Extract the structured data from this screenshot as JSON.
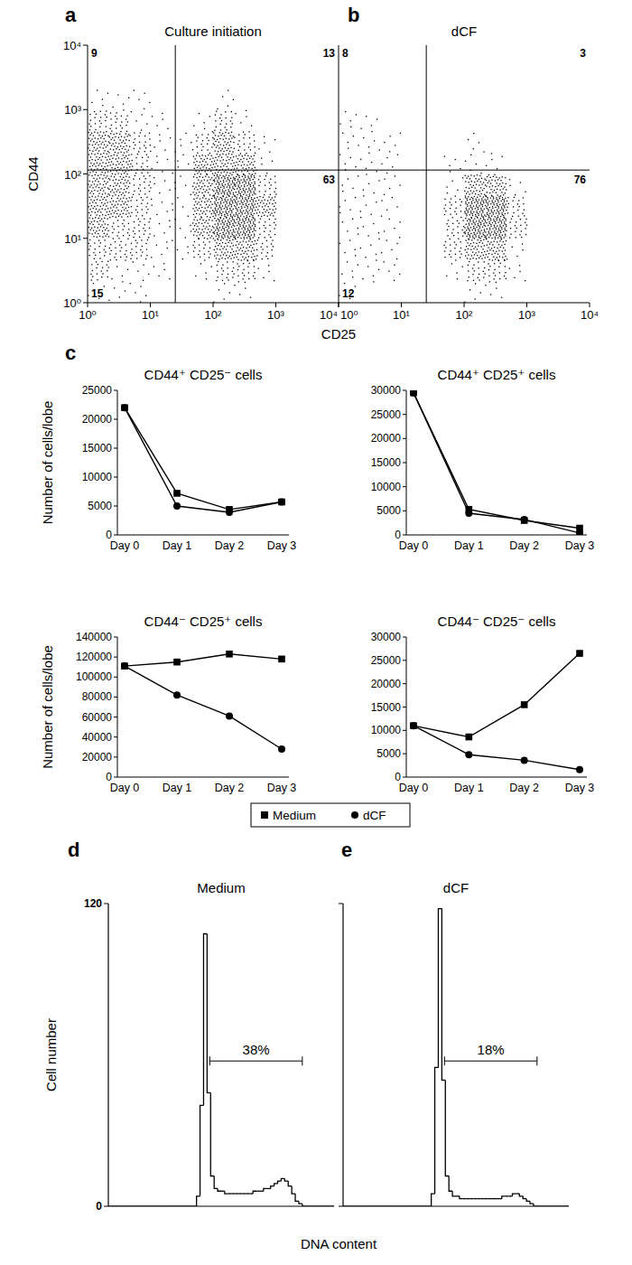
{
  "chart_data": [
    {
      "type": "scatter",
      "panel": "a",
      "title": "Culture initiation",
      "x_label": "CD25",
      "y_label": "CD44",
      "log": true,
      "xlim": [
        1,
        10000
      ],
      "ylim": [
        1,
        10000
      ],
      "xticks": [
        {
          "value": 1,
          "label": "10⁰"
        },
        {
          "value": 10,
          "label": "10¹"
        },
        {
          "value": 100,
          "label": "10²"
        },
        {
          "value": 1000,
          "label": "10³"
        },
        {
          "value": 10000,
          "label": "10⁴"
        }
      ],
      "yticks": [
        {
          "value": 1,
          "label": "10⁰"
        },
        {
          "value": 10,
          "label": "10¹"
        },
        {
          "value": 100,
          "label": "10²"
        },
        {
          "value": 1000,
          "label": "10³"
        },
        {
          "value": 10000,
          "label": "10⁴"
        }
      ],
      "gates": {
        "x": 25,
        "y": 115
      },
      "quadrants": [
        {
          "position": "upper-left",
          "value": 9
        },
        {
          "position": "upper-right",
          "value": 13
        },
        {
          "position": "lower-right",
          "value": 63
        },
        {
          "position": "lower-left",
          "value": 15
        }
      ],
      "density": {
        "x_edges": [
          1,
          2.15,
          4.64,
          10,
          21.5,
          46.4,
          100,
          215,
          464,
          1000,
          2150,
          4640,
          10000
        ],
        "y_edges": [
          1,
          2.15,
          4.64,
          10,
          21.5,
          46.4,
          100,
          215,
          464,
          1000,
          2150,
          4640,
          10000
        ],
        "cells": [
          [
            1,
            1,
            1,
            0,
            0,
            0,
            1,
            1,
            0,
            0,
            0,
            0
          ],
          [
            2,
            1,
            1,
            1,
            0,
            1,
            2,
            2,
            1,
            0,
            0,
            0
          ],
          [
            2,
            2,
            2,
            1,
            1,
            2,
            3,
            3,
            2,
            0,
            0,
            0
          ],
          [
            3,
            2,
            2,
            1,
            1,
            3,
            4,
            4,
            2,
            0,
            0,
            0
          ],
          [
            3,
            3,
            2,
            1,
            1,
            3,
            4,
            4,
            3,
            0,
            0,
            0
          ],
          [
            3,
            3,
            2,
            1,
            1,
            3,
            4,
            4,
            2,
            0,
            0,
            0
          ],
          [
            3,
            3,
            2,
            1,
            1,
            3,
            3,
            3,
            1,
            0,
            0,
            0
          ],
          [
            3,
            3,
            2,
            1,
            1,
            2,
            3,
            2,
            1,
            0,
            0,
            0
          ],
          [
            2,
            2,
            1,
            1,
            0,
            1,
            2,
            1,
            0,
            0,
            0,
            0
          ],
          [
            1,
            1,
            1,
            0,
            0,
            0,
            1,
            0,
            0,
            0,
            0,
            0
          ],
          [
            0,
            0,
            0,
            0,
            0,
            0,
            0,
            0,
            0,
            0,
            0,
            0
          ],
          [
            0,
            0,
            0,
            0,
            0,
            0,
            0,
            0,
            0,
            0,
            0,
            0
          ]
        ]
      }
    },
    {
      "type": "scatter",
      "panel": "b",
      "title": "dCF",
      "log": true,
      "tick_labels": "x",
      "xlim": [
        1,
        10000
      ],
      "ylim": [
        1,
        10000
      ],
      "xticks": [
        {
          "value": 1,
          "label": "10⁰"
        },
        {
          "value": 10,
          "label": "10¹"
        },
        {
          "value": 100,
          "label": "10²"
        },
        {
          "value": 1000,
          "label": "10³"
        },
        {
          "value": 10000,
          "label": "10⁴"
        }
      ],
      "gates": {
        "x": 25,
        "y": 115
      },
      "quadrants": [
        {
          "position": "upper-left",
          "value": 8
        },
        {
          "position": "upper-right",
          "value": 3
        },
        {
          "position": "lower-right",
          "value": 76
        },
        {
          "position": "lower-left",
          "value": 12
        }
      ],
      "density": {
        "x_edges": [
          1,
          2.15,
          4.64,
          10,
          21.5,
          46.4,
          100,
          215,
          464,
          1000,
          2150,
          4640,
          10000
        ],
        "y_edges": [
          1,
          2.15,
          4.64,
          10,
          21.5,
          46.4,
          100,
          215,
          464,
          1000,
          2150,
          4640,
          10000
        ],
        "cells": [
          [
            1,
            0,
            0,
            0,
            0,
            0,
            1,
            1,
            0,
            0,
            0,
            0
          ],
          [
            1,
            1,
            1,
            0,
            0,
            1,
            2,
            2,
            1,
            0,
            0,
            0
          ],
          [
            1,
            1,
            1,
            0,
            0,
            2,
            3,
            3,
            1,
            0,
            0,
            0
          ],
          [
            1,
            1,
            1,
            0,
            0,
            2,
            4,
            4,
            2,
            0,
            0,
            0
          ],
          [
            1,
            1,
            1,
            0,
            0,
            2,
            4,
            4,
            2,
            0,
            0,
            0
          ],
          [
            1,
            1,
            1,
            0,
            0,
            1,
            3,
            3,
            1,
            0,
            0,
            0
          ],
          [
            1,
            1,
            1,
            0,
            0,
            1,
            1,
            1,
            0,
            0,
            0,
            0
          ],
          [
            1,
            1,
            1,
            0,
            0,
            0,
            1,
            0,
            0,
            0,
            0,
            0
          ],
          [
            1,
            1,
            0,
            0,
            0,
            0,
            0,
            0,
            0,
            0,
            0,
            0
          ],
          [
            0,
            0,
            0,
            0,
            0,
            0,
            0,
            0,
            0,
            0,
            0,
            0
          ],
          [
            0,
            0,
            0,
            0,
            0,
            0,
            0,
            0,
            0,
            0,
            0,
            0
          ],
          [
            0,
            0,
            0,
            0,
            0,
            0,
            0,
            0,
            0,
            0,
            0,
            0
          ]
        ]
      }
    },
    {
      "type": "line",
      "panel": "c",
      "title": "CD44⁺ CD25⁻ cells",
      "y_label": "Number of cells/lobe",
      "categories": [
        "Day 0",
        "Day 1",
        "Day 2",
        "Day 3"
      ],
      "ylim": [
        0,
        25000
      ],
      "yticks": [
        0,
        5000,
        10000,
        15000,
        20000,
        25000
      ],
      "series": [
        {
          "name": "Medium",
          "marker": "square",
          "color": "#000000",
          "values": [
            22000,
            7200,
            4400,
            5700
          ]
        },
        {
          "name": "dCF",
          "marker": "circle",
          "color": "#000000",
          "values": [
            22000,
            5000,
            3900,
            5700
          ]
        }
      ]
    },
    {
      "type": "line",
      "title": "CD44⁺ CD25⁺ cells",
      "categories": [
        "Day 0",
        "Day 1",
        "Day 2",
        "Day 3"
      ],
      "ylim": [
        0,
        30000
      ],
      "yticks": [
        0,
        5000,
        10000,
        15000,
        20000,
        25000,
        30000
      ],
      "series": [
        {
          "name": "Medium",
          "marker": "square",
          "color": "#000000",
          "values": [
            29500,
            5300,
            3000,
            1400
          ]
        },
        {
          "name": "dCF",
          "marker": "circle",
          "color": "#000000",
          "values": [
            29500,
            4500,
            3200,
            400
          ]
        }
      ]
    },
    {
      "type": "line",
      "title": "CD44⁻ CD25⁺ cells",
      "y_label": "Number of cells/lobe",
      "legend": "bottom",
      "categories": [
        "Day 0",
        "Day 1",
        "Day 2",
        "Day 3"
      ],
      "ylim": [
        0,
        140000
      ],
      "yticks": [
        0,
        20000,
        40000,
        60000,
        80000,
        100000,
        120000,
        140000
      ],
      "series": [
        {
          "name": "Medium",
          "marker": "square",
          "color": "#000000",
          "values": [
            111000,
            115000,
            123000,
            118000
          ]
        },
        {
          "name": "dCF",
          "marker": "circle",
          "color": "#000000",
          "values": [
            111000,
            82000,
            61000,
            28000
          ]
        }
      ]
    },
    {
      "type": "line",
      "title": "CD44⁻ CD25⁻ cells",
      "categories": [
        "Day 0",
        "Day 1",
        "Day 2",
        "Day 3"
      ],
      "ylim": [
        0,
        30000
      ],
      "yticks": [
        0,
        5000,
        10000,
        15000,
        20000,
        25000,
        30000
      ],
      "series": [
        {
          "name": "Medium",
          "marker": "square",
          "color": "#000000",
          "values": [
            11000,
            8600,
            15500,
            26500
          ]
        },
        {
          "name": "dCF",
          "marker": "circle",
          "color": "#000000",
          "values": [
            11000,
            4800,
            3600,
            1600
          ]
        }
      ]
    },
    {
      "type": "histogram",
      "panel": "d",
      "title": "Medium",
      "x_label": "DNA content",
      "y_label": "Cell number",
      "tick_labels": "y",
      "xlim": [
        0,
        256
      ],
      "ylim": [
        0,
        120
      ],
      "yticks": [
        0,
        120
      ],
      "bins": [
        0,
        4,
        8,
        12,
        16,
        20,
        24,
        28,
        32,
        36,
        40,
        44,
        48,
        52,
        56,
        60,
        64,
        68,
        72,
        76,
        80,
        84,
        88,
        92,
        96,
        100,
        104,
        108,
        112,
        116,
        120,
        124,
        128,
        132,
        136,
        140,
        144,
        148,
        152,
        156,
        160,
        164,
        168,
        172,
        176,
        180,
        184,
        188,
        192,
        196,
        200,
        204,
        208,
        212,
        216,
        220,
        224,
        228,
        232,
        236,
        240,
        244,
        248,
        252,
        256
      ],
      "counts": [
        0,
        0,
        0,
        0,
        0,
        0,
        0,
        0,
        0,
        0,
        0,
        0,
        0,
        0,
        0,
        0,
        0,
        0,
        0,
        0,
        0,
        0,
        0,
        0,
        0,
        4,
        40,
        108,
        45,
        12,
        7,
        6,
        6,
        5,
        5,
        5,
        5,
        5,
        5,
        5,
        5,
        6,
        6,
        6,
        7,
        7,
        8,
        9,
        10,
        11,
        10,
        8,
        5,
        2,
        1,
        0,
        0,
        0,
        0,
        0,
        0,
        0,
        0,
        0
      ],
      "gate": {
        "range": [
          115,
          220
        ],
        "label": "38%"
      }
    },
    {
      "type": "histogram",
      "panel": "e",
      "title": "dCF",
      "tick_labels": false,
      "xlim": [
        0,
        256
      ],
      "ylim": [
        0,
        120
      ],
      "yticks": [
        0,
        120
      ],
      "bins": [
        0,
        4,
        8,
        12,
        16,
        20,
        24,
        28,
        32,
        36,
        40,
        44,
        48,
        52,
        56,
        60,
        64,
        68,
        72,
        76,
        80,
        84,
        88,
        92,
        96,
        100,
        104,
        108,
        112,
        116,
        120,
        124,
        128,
        132,
        136,
        140,
        144,
        148,
        152,
        156,
        160,
        164,
        168,
        172,
        176,
        180,
        184,
        188,
        192,
        196,
        200,
        204,
        208,
        212,
        216,
        220,
        224,
        228,
        232,
        236,
        240,
        244,
        248,
        252,
        256
      ],
      "counts": [
        0,
        0,
        0,
        0,
        0,
        0,
        0,
        0,
        0,
        0,
        0,
        0,
        0,
        0,
        0,
        0,
        0,
        0,
        0,
        0,
        0,
        0,
        0,
        0,
        0,
        5,
        55,
        118,
        50,
        12,
        6,
        4,
        4,
        3,
        3,
        3,
        3,
        3,
        3,
        3,
        3,
        3,
        3,
        3,
        3,
        4,
        4,
        4,
        5,
        5,
        4,
        3,
        2,
        1,
        0,
        0,
        0,
        0,
        0,
        0,
        0,
        0,
        0,
        0
      ],
      "gate": {
        "range": [
          115,
          220
        ],
        "label": "18%"
      }
    }
  ]
}
